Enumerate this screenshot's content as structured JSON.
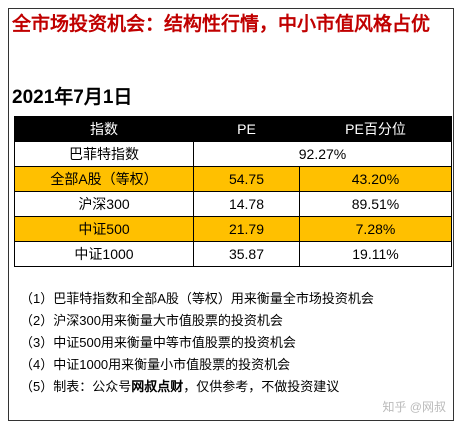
{
  "header": {
    "title": "全市场投资机会：结构性行情，中小市值风格占优",
    "date": "2021年7月1日"
  },
  "table": {
    "columns": [
      "指数",
      "PE",
      "PE百分位"
    ],
    "rows": [
      [
        "巴菲特指数",
        "92.27%"
      ],
      [
        "全部A股（等权）",
        "54.75",
        "43.20%"
      ],
      [
        "沪深300",
        "14.78",
        "89.51%"
      ],
      [
        "中证500",
        "21.79",
        "7.28%"
      ],
      [
        "中证1000",
        "35.87",
        "19.11%"
      ]
    ]
  },
  "notes": [
    "（1）巴菲特指数和全部A股（等权）用来衡量全市场投资机会",
    "（2）沪深300用来衡量大市值股票的投资机会",
    "（3）中证500用来衡量中等市值股票的投资机会",
    "（4）中证1000用来衡量小市值股票的投资机会",
    {
      "prefix": "（5）制表：公众号",
      "bold": "网叔点财",
      "suffix": "，仅供参考，不做投资建议"
    }
  ],
  "watermark": "知乎 @网叔"
}
